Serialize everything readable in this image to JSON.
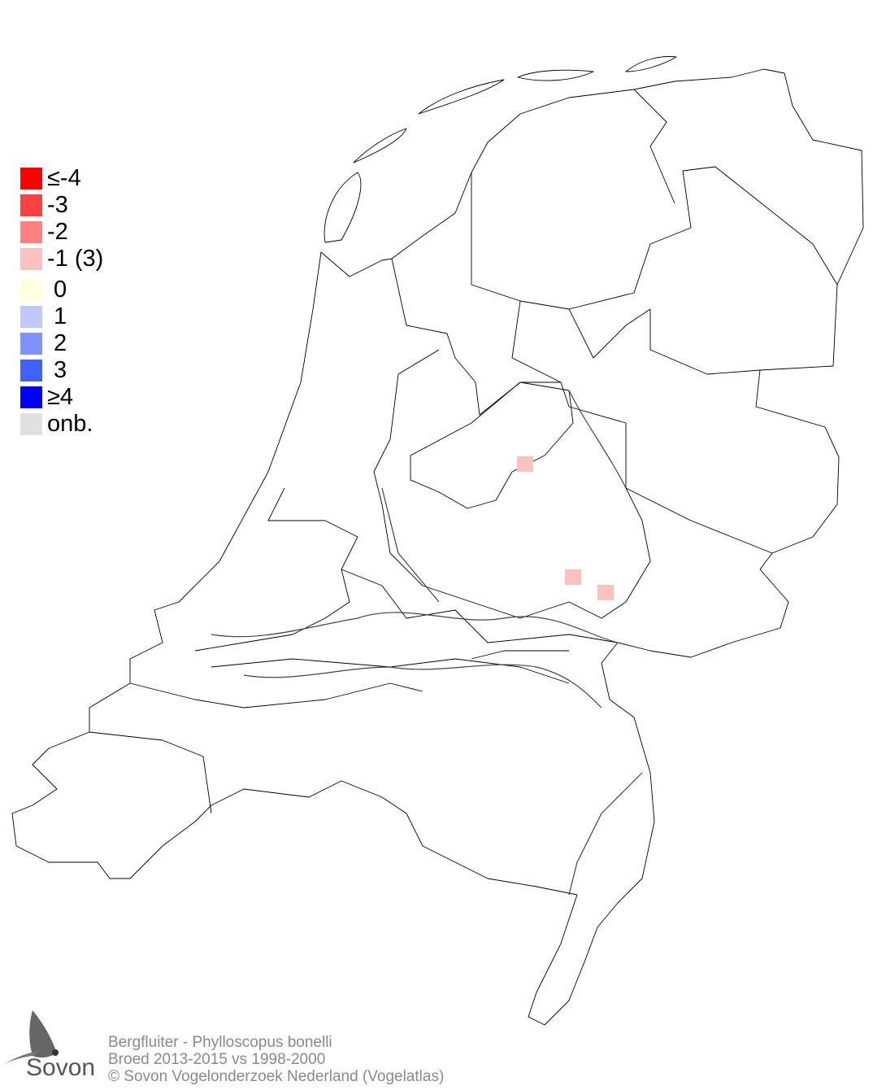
{
  "legend": {
    "items": [
      {
        "label": "≤-4",
        "color": "#FF0000"
      },
      {
        "label": "-3",
        "color": "#FF4040"
      },
      {
        "label": "-2",
        "color": "#FF8080"
      },
      {
        "label": "-1 (3)",
        "color": "#FFC0C0"
      },
      {
        "label": " 0",
        "color": "#FFFFE0"
      },
      {
        "label": " 1",
        "color": "#C0C8FF"
      },
      {
        "label": " 2",
        "color": "#8090FF"
      },
      {
        "label": " 3",
        "color": "#4060FF"
      },
      {
        "label": "≥4",
        "color": "#0000FF"
      },
      {
        "label": "onb.",
        "color": "#E0E0E0"
      }
    ]
  },
  "map": {
    "region": "Netherlands",
    "cells": [
      {
        "value": -1,
        "color": "#FFC0C0"
      },
      {
        "value": -1,
        "color": "#FFC0C0"
      },
      {
        "value": -1,
        "color": "#FFC0C0"
      }
    ]
  },
  "footer": {
    "line1": "Bergfluiter - Phylloscopus bonelli",
    "line2": "Broed 2013-2015 vs 1998-2000",
    "line3": "© Sovon Vogelonderzoek Nederland (Vogelatlas)"
  },
  "logo": {
    "text": "Sovon"
  }
}
